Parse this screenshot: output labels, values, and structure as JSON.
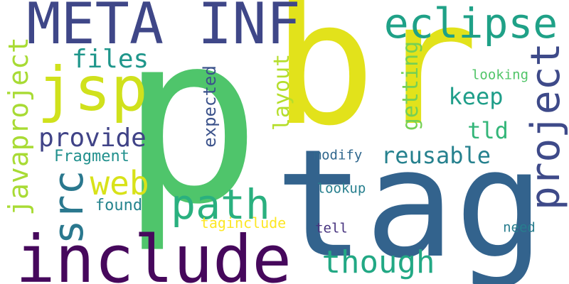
{
  "words": [
    {
      "text": "p",
      "color": "#4fc56b"
    },
    {
      "text": "br",
      "color": "#e2e21b"
    },
    {
      "text": "tag",
      "color": "#33638d"
    },
    {
      "text": "include",
      "color": "#46085c"
    },
    {
      "text": "META INF",
      "color": "#3f4788"
    },
    {
      "text": "jsp",
      "color": "#d0e11c"
    },
    {
      "text": "eclipse",
      "color": "#1fa187"
    },
    {
      "text": "project",
      "color": "#3e4a89"
    },
    {
      "text": "path",
      "color": "#2ab07f"
    },
    {
      "text": "though",
      "color": "#22a884"
    },
    {
      "text": "javaproject",
      "color": "#a8db34"
    },
    {
      "text": "src",
      "color": "#2a788e"
    },
    {
      "text": "provide",
      "color": "#404387"
    },
    {
      "text": "web",
      "color": "#d8e219"
    },
    {
      "text": "files",
      "color": "#1f968b"
    },
    {
      "text": "reusable",
      "color": "#26818e"
    },
    {
      "text": "layout",
      "color": "#b5de2b"
    },
    {
      "text": "getting",
      "color": "#75d054"
    },
    {
      "text": "keep",
      "color": "#1f9e89"
    },
    {
      "text": "tld",
      "color": "#34b679"
    },
    {
      "text": "expected",
      "color": "#3b528b"
    },
    {
      "text": "Fragment",
      "color": "#21908d"
    },
    {
      "text": "found",
      "color": "#25848e"
    },
    {
      "text": "taginclude",
      "color": "#fde725"
    },
    {
      "text": "looking",
      "color": "#52c569"
    },
    {
      "text": "modify",
      "color": "#31688e"
    },
    {
      "text": "lookup",
      "color": "#277f8e"
    },
    {
      "text": "tell",
      "color": "#46327e"
    },
    {
      "text": "need",
      "color": "#287d8e"
    }
  ]
}
